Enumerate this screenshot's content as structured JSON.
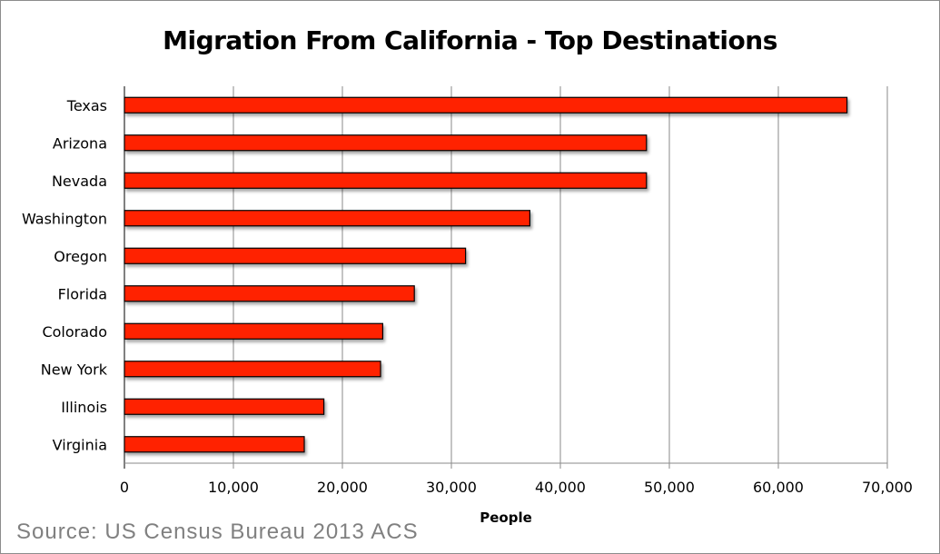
{
  "chart_data": {
    "type": "bar",
    "orientation": "horizontal",
    "title": "Migration From California - Top Destinations",
    "xlabel": "People",
    "ylabel": "",
    "categories": [
      "Texas",
      "Arizona",
      "Nevada",
      "Washington",
      "Oregon",
      "Florida",
      "Colorado",
      "New York",
      "Illinois",
      "Virginia"
    ],
    "values": [
      66300,
      47900,
      47900,
      37200,
      31300,
      26600,
      23700,
      23500,
      18300,
      16500
    ],
    "xlim": [
      0,
      70000
    ],
    "xticks": [
      0,
      10000,
      20000,
      30000,
      40000,
      50000,
      60000,
      70000
    ],
    "xtick_labels": [
      "0",
      "10,000",
      "20,000",
      "30,000",
      "40,000",
      "50,000",
      "60,000",
      "70,000"
    ],
    "grid": "vertical",
    "legend": "none",
    "bar_color": "#ff2200",
    "source": "Source: US Census Bureau 2013 ACS"
  }
}
